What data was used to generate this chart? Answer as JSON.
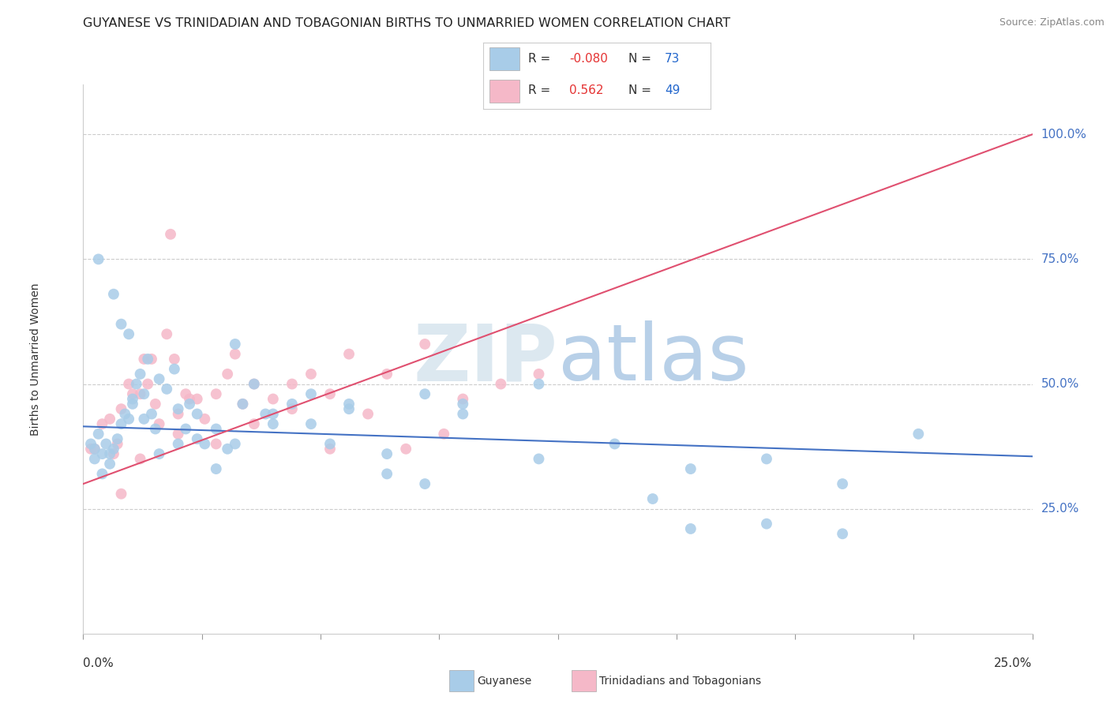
{
  "title": "GUYANESE VS TRINIDADIAN AND TOBAGONIAN BIRTHS TO UNMARRIED WOMEN CORRELATION CHART",
  "source": "Source: ZipAtlas.com",
  "legend_label1": "Guyanese",
  "legend_label2": "Trinidadians and Tobagonians",
  "R1": -0.08,
  "N1": 73,
  "R2": 0.562,
  "N2": 49,
  "color_blue": "#a8cce8",
  "color_pink": "#f5b8c8",
  "color_blue_line": "#4472c4",
  "color_pink_line": "#e05070",
  "watermark_color": "#dce8f0",
  "background_color": "#ffffff",
  "xmin": 0.0,
  "xmax": 0.25,
  "ymin": 0.0,
  "ymax": 1.1,
  "blue_line_x": [
    0.0,
    0.25
  ],
  "blue_line_y": [
    0.415,
    0.355
  ],
  "pink_line_x": [
    0.0,
    0.25
  ],
  "pink_line_y": [
    0.3,
    1.0
  ],
  "blue_scatter_x": [
    0.002,
    0.003,
    0.004,
    0.005,
    0.006,
    0.007,
    0.008,
    0.009,
    0.01,
    0.011,
    0.012,
    0.013,
    0.014,
    0.015,
    0.016,
    0.017,
    0.018,
    0.019,
    0.02,
    0.022,
    0.024,
    0.025,
    0.027,
    0.028,
    0.03,
    0.032,
    0.035,
    0.038,
    0.04,
    0.042,
    0.045,
    0.048,
    0.05,
    0.055,
    0.06,
    0.065,
    0.07,
    0.08,
    0.09,
    0.1,
    0.12,
    0.14,
    0.16,
    0.18,
    0.2,
    0.22,
    0.003,
    0.005,
    0.007,
    0.01,
    0.013,
    0.016,
    0.02,
    0.025,
    0.03,
    0.035,
    0.04,
    0.05,
    0.06,
    0.07,
    0.08,
    0.09,
    0.1,
    0.12,
    0.15,
    0.16,
    0.18,
    0.2,
    0.004,
    0.008,
    0.012
  ],
  "blue_scatter_y": [
    0.38,
    0.37,
    0.4,
    0.36,
    0.38,
    0.36,
    0.37,
    0.39,
    0.42,
    0.44,
    0.43,
    0.46,
    0.5,
    0.52,
    0.48,
    0.55,
    0.44,
    0.41,
    0.51,
    0.49,
    0.53,
    0.45,
    0.41,
    0.46,
    0.44,
    0.38,
    0.41,
    0.37,
    0.58,
    0.46,
    0.5,
    0.44,
    0.42,
    0.46,
    0.48,
    0.38,
    0.45,
    0.36,
    0.3,
    0.44,
    0.35,
    0.38,
    0.21,
    0.35,
    0.2,
    0.4,
    0.35,
    0.32,
    0.34,
    0.62,
    0.47,
    0.43,
    0.36,
    0.38,
    0.39,
    0.33,
    0.38,
    0.44,
    0.42,
    0.46,
    0.32,
    0.48,
    0.46,
    0.5,
    0.27,
    0.33,
    0.22,
    0.3,
    0.75,
    0.68,
    0.6
  ],
  "pink_scatter_x": [
    0.002,
    0.003,
    0.005,
    0.007,
    0.008,
    0.009,
    0.01,
    0.012,
    0.013,
    0.015,
    0.016,
    0.017,
    0.018,
    0.019,
    0.02,
    0.022,
    0.024,
    0.025,
    0.027,
    0.028,
    0.03,
    0.032,
    0.035,
    0.038,
    0.04,
    0.042,
    0.045,
    0.05,
    0.055,
    0.06,
    0.065,
    0.07,
    0.08,
    0.09,
    0.1,
    0.11,
    0.12,
    0.015,
    0.025,
    0.035,
    0.045,
    0.055,
    0.065,
    0.075,
    0.085,
    0.095,
    0.01,
    0.023
  ],
  "pink_scatter_y": [
    0.37,
    0.37,
    0.42,
    0.43,
    0.36,
    0.38,
    0.45,
    0.5,
    0.48,
    0.48,
    0.55,
    0.5,
    0.55,
    0.46,
    0.42,
    0.6,
    0.55,
    0.44,
    0.48,
    0.47,
    0.47,
    0.43,
    0.48,
    0.52,
    0.56,
    0.46,
    0.5,
    0.47,
    0.5,
    0.52,
    0.48,
    0.56,
    0.52,
    0.58,
    0.47,
    0.5,
    0.52,
    0.35,
    0.4,
    0.38,
    0.42,
    0.45,
    0.37,
    0.44,
    0.37,
    0.4,
    0.28,
    0.8
  ]
}
